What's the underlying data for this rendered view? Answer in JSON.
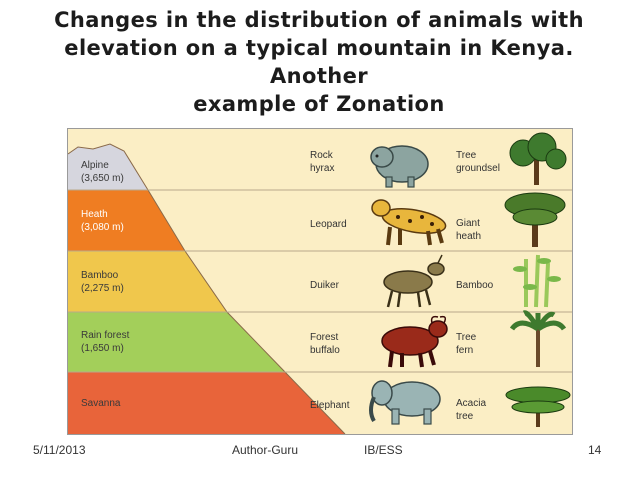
{
  "title": {
    "line1": "Changes in the distribution of animals with",
    "line2": "elevation on a typical mountain in Kenya. Another",
    "line3": "example of Zonation"
  },
  "zones": [
    {
      "name": "Alpine",
      "elevation": "(3,650 m)",
      "color": "#d6d6de"
    },
    {
      "name": "Heath",
      "elevation": "(3,080 m)",
      "color": "#ef7d22"
    },
    {
      "name": "Bamboo",
      "elevation": "(2,275 m)",
      "color": "#f0c74c"
    },
    {
      "name": "Rain forest",
      "elevation": "(1,650 m)",
      "color": "#a3cf5a"
    },
    {
      "name": "Savanna",
      "elevation": "",
      "color": "#e8643a"
    }
  ],
  "animals": [
    {
      "line1": "Rock",
      "line2": "hyrax",
      "icon": "rock-hyrax-icon"
    },
    {
      "line1": "Leopard",
      "line2": "",
      "icon": "leopard-icon"
    },
    {
      "line1": "Duiker",
      "line2": "",
      "icon": "duiker-icon"
    },
    {
      "line1": "Forest",
      "line2": "buffalo",
      "icon": "forest-buffalo-icon"
    },
    {
      "line1": "Elephant",
      "line2": "",
      "icon": "elephant-icon"
    }
  ],
  "plants": [
    {
      "line1": "Tree",
      "line2": "groundsel",
      "icon": "tree-groundsel-icon"
    },
    {
      "line1": "Giant",
      "line2": "heath",
      "icon": "giant-heath-icon"
    },
    {
      "line1": "Bamboo",
      "line2": "",
      "icon": "bamboo-icon"
    },
    {
      "line1": "Tree",
      "line2": "fern",
      "icon": "tree-fern-icon"
    },
    {
      "line1": "Acacia",
      "line2": "tree",
      "icon": "acacia-tree-icon"
    }
  ],
  "footer": {
    "date": "5/11/2013",
    "author": "Author-Guru",
    "course": "IB/ESS",
    "page": "14"
  }
}
